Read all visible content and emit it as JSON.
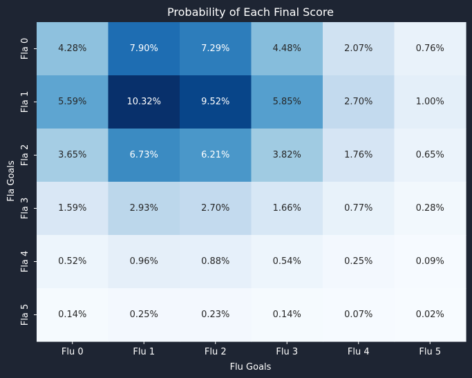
{
  "chart_data": {
    "type": "heatmap",
    "title": "Probability of Each Final Score",
    "xlabel": "Flu Goals",
    "ylabel": "Fla Goals",
    "x_categories": [
      "Flu 0",
      "Flu 1",
      "Flu 2",
      "Flu 3",
      "Flu 4",
      "Flu 5"
    ],
    "y_categories": [
      "Fla 0",
      "Fla 1",
      "Fla 2",
      "Fla 3",
      "Fla 4",
      "Fla 5"
    ],
    "values": [
      [
        4.28,
        7.9,
        7.29,
        4.48,
        2.07,
        0.76
      ],
      [
        5.59,
        10.32,
        9.52,
        5.85,
        2.7,
        1.0
      ],
      [
        3.65,
        6.73,
        6.21,
        3.82,
        1.76,
        0.65
      ],
      [
        1.59,
        2.93,
        2.7,
        1.66,
        0.77,
        0.28
      ],
      [
        0.52,
        0.96,
        0.88,
        0.54,
        0.25,
        0.09
      ],
      [
        0.14,
        0.25,
        0.23,
        0.14,
        0.07,
        0.02
      ]
    ],
    "labels": [
      [
        "4.28%",
        "7.90%",
        "7.29%",
        "4.48%",
        "2.07%",
        "0.76%"
      ],
      [
        "5.59%",
        "10.32%",
        "9.52%",
        "5.85%",
        "2.70%",
        "1.00%"
      ],
      [
        "3.65%",
        "6.73%",
        "6.21%",
        "3.82%",
        "1.76%",
        "0.65%"
      ],
      [
        "1.59%",
        "2.93%",
        "2.70%",
        "1.66%",
        "0.77%",
        "0.28%"
      ],
      [
        "0.52%",
        "0.96%",
        "0.88%",
        "0.54%",
        "0.25%",
        "0.09%"
      ],
      [
        "0.14%",
        "0.25%",
        "0.23%",
        "0.14%",
        "0.07%",
        "0.02%"
      ]
    ],
    "colormap": "Blues",
    "colorbar": false,
    "grid": false
  }
}
